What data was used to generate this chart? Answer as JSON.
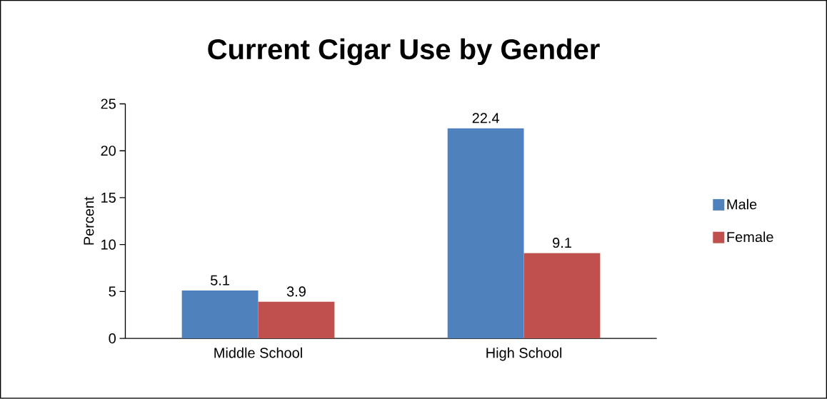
{
  "chart_data": {
    "type": "bar",
    "title": "Current Cigar Use by Gender",
    "ylabel": "Percent",
    "categories": [
      "Middle School",
      "High School"
    ],
    "series": [
      {
        "name": "Male",
        "color": "#4f81bd",
        "values": [
          5.1,
          22.4
        ]
      },
      {
        "name": "Female",
        "color": "#c0504d",
        "values": [
          3.9,
          9.1
        ]
      }
    ],
    "ylim": [
      0,
      25
    ],
    "yticks": [
      0,
      5,
      10,
      15,
      20,
      25
    ],
    "data_labels": true,
    "legend": "right",
    "grid": false
  }
}
